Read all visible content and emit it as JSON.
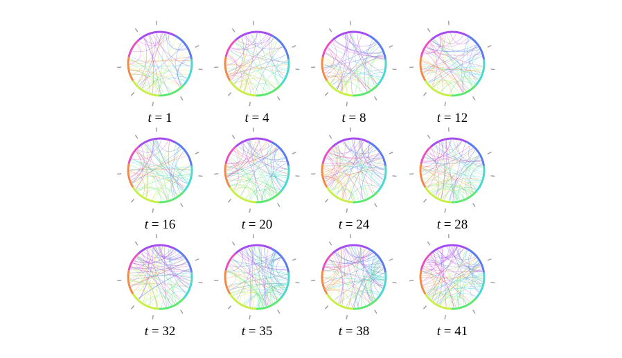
{
  "figure": {
    "variable": "t",
    "equals": "=",
    "panels": [
      {
        "t": "1"
      },
      {
        "t": "4"
      },
      {
        "t": "8"
      },
      {
        "t": "12"
      },
      {
        "t": "16"
      },
      {
        "t": "20"
      },
      {
        "t": "24"
      },
      {
        "t": "28"
      },
      {
        "t": "32"
      },
      {
        "t": "35"
      },
      {
        "t": "38"
      },
      {
        "t": "41"
      }
    ],
    "ring_segment_colors": [
      "#a64df0",
      "#5c7cf0",
      "#48d8d0",
      "#5ce870",
      "#c8ee48",
      "#f08a48",
      "#e850c0"
    ],
    "tick_label_color": "#9a9a9a"
  }
}
